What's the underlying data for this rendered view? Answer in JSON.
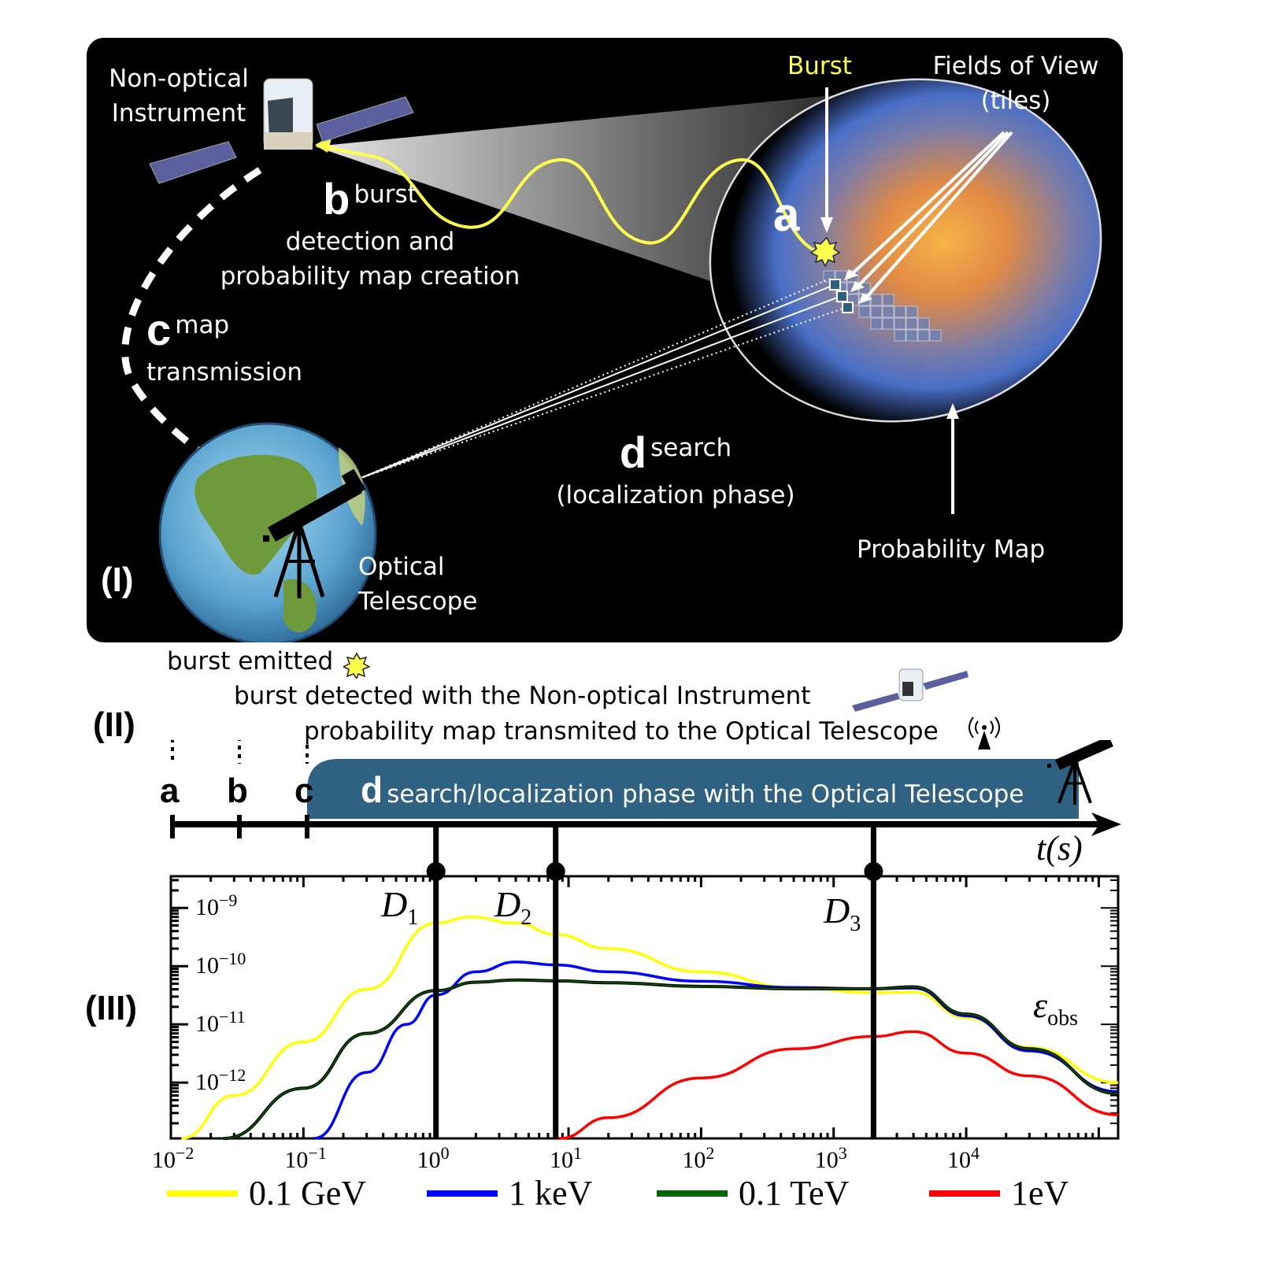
{
  "panel_I": {
    "label": "(I)",
    "instrument_label_line1": "Non-optical",
    "instrument_label_line2": "Instrument",
    "burst_label": "Burst",
    "fov_label_line1": "Fields of View",
    "fov_label_line2": "(tiles)",
    "step_a": {
      "letter": "a"
    },
    "step_b": {
      "letter": "b",
      "line1": "burst",
      "line2": "detection and",
      "line3": "probability map creation"
    },
    "step_c": {
      "letter": "c",
      "line1": "map",
      "line2": "transmission"
    },
    "step_d": {
      "letter": "d",
      "line1": "search",
      "line2": "(localization phase)"
    },
    "telescope_label_line1": "Optical",
    "telescope_label_line2": "Telescope",
    "map_label": "Probability Map",
    "colors": {
      "background": "#000000",
      "burst": "#ffff4d",
      "map_core": "#f09a3a",
      "map_edge": "#4a6fc7"
    }
  },
  "panel_II": {
    "label": "(II)",
    "event_a": "burst emitted",
    "event_b": "burst detected with the Non-optical Instrument",
    "event_c": "probability map transmited to the Optical Telescope",
    "ticks": [
      "a",
      "b",
      "c"
    ],
    "phase_letter": "d",
    "phase_text": "search/localization phase with the Optical Telescope",
    "axis_label": "t(s)",
    "colors": {
      "phase_bar": "#2f6182"
    }
  },
  "panel_III": {
    "label": "(III)",
    "y_quantity": "εobs",
    "markers": [
      "D1",
      "D2",
      "D3"
    ]
  },
  "chart_data": {
    "type": "line",
    "title": "",
    "xlabel": "t(s)",
    "ylabel": "ε_obs",
    "xscale": "log",
    "yscale": "log",
    "xlim": [
      0.01,
      140000
    ],
    "ylim": [
      1.1e-13,
      3.5e-09
    ],
    "x_tick_labels": [
      "10^-2",
      "10^-1",
      "10^0",
      "10^1",
      "10^2",
      "10^3",
      "10^4"
    ],
    "y_tick_labels": [
      "10^-9",
      "10^-10",
      "10^-11",
      "10^-12"
    ],
    "vertical_markers": [
      {
        "name": "D1",
        "x": 1.0
      },
      {
        "name": "D2",
        "x": 8.0
      },
      {
        "name": "D3",
        "x": 2000
      }
    ],
    "legend_position": "bottom",
    "grid": false,
    "series": [
      {
        "name": "0.1 GeV",
        "color": "#ffff00",
        "x": [
          0.012,
          0.03,
          0.1,
          0.3,
          1.0,
          1.8,
          4,
          8,
          20,
          100,
          500,
          2000,
          4000,
          10000,
          30000,
          140000
        ],
        "y": [
          1.1e-13,
          6e-13,
          5e-12,
          4e-11,
          5.5e-10,
          7e-10,
          5.5e-10,
          3.5e-10,
          2e-10,
          8e-11,
          4.3e-11,
          3.5e-11,
          3.6e-11,
          1.3e-11,
          4e-12,
          1e-12
        ]
      },
      {
        "name": "1 keV",
        "color": "#0000ff",
        "x": [
          0.12,
          0.3,
          0.6,
          1.0,
          2,
          4,
          8,
          20,
          100,
          500,
          2000,
          4000,
          10000,
          30000,
          140000
        ],
        "y": [
          1.1e-13,
          1.5e-12,
          1e-11,
          3.2e-11,
          8e-11,
          1.18e-10,
          1.05e-10,
          8e-11,
          5.5e-11,
          4.3e-11,
          4.1e-11,
          4.2e-11,
          1.4e-11,
          3.5e-12,
          7e-13
        ]
      },
      {
        "name": "0.1 TeV",
        "color": "#006400",
        "x": [
          0.025,
          0.1,
          0.3,
          1.0,
          2,
          4,
          8,
          20,
          100,
          500,
          2000,
          4000,
          10000,
          30000,
          140000
        ],
        "y": [
          1.1e-13,
          8e-13,
          7e-12,
          3.8e-11,
          5.3e-11,
          5.8e-11,
          5.6e-11,
          5.2e-11,
          4.5e-11,
          4.1e-11,
          4.1e-11,
          4.4e-11,
          1.5e-11,
          3.8e-12,
          6.5e-13
        ]
      },
      {
        "name": "1eV",
        "color": "#ff0000",
        "x": [
          8.5,
          20,
          100,
          500,
          2000,
          4000,
          10000,
          30000,
          140000
        ],
        "y": [
          1.1e-13,
          2.5e-13,
          1.2e-12,
          3.8e-12,
          6.2e-12,
          7.5e-12,
          3.2e-12,
          1.3e-12,
          2.8e-13
        ]
      }
    ]
  }
}
